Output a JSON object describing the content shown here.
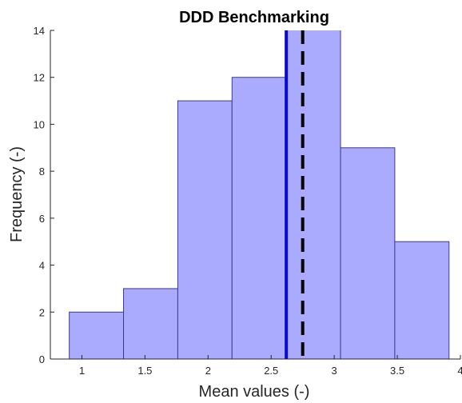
{
  "chart_data": {
    "type": "bar",
    "title": "DDD Benchmarking",
    "xlabel": "Mean values (-)",
    "ylabel": "Frequency (-)",
    "xlim": [
      0.75,
      4
    ],
    "ylim": [
      0,
      14
    ],
    "xticks": [
      "1",
      "1.5",
      "2",
      "2.5",
      "3",
      "3.5",
      "4"
    ],
    "yticks": [
      "0",
      "2",
      "4",
      "6",
      "8",
      "10",
      "12",
      "14"
    ],
    "bin_edges": [
      0.9,
      1.33,
      1.76,
      2.19,
      2.62,
      3.05,
      3.48,
      3.91
    ],
    "values": [
      2,
      3,
      11,
      12,
      15,
      9,
      5
    ],
    "grid": false,
    "bar_color": "#aaaaff",
    "bar_edge_color": "#3b3b8f",
    "reference_lines": [
      {
        "x": 2.62,
        "style": "solid",
        "color": "#0a0ac8"
      },
      {
        "x": 2.75,
        "style": "dashed",
        "color": "#000000"
      }
    ]
  }
}
